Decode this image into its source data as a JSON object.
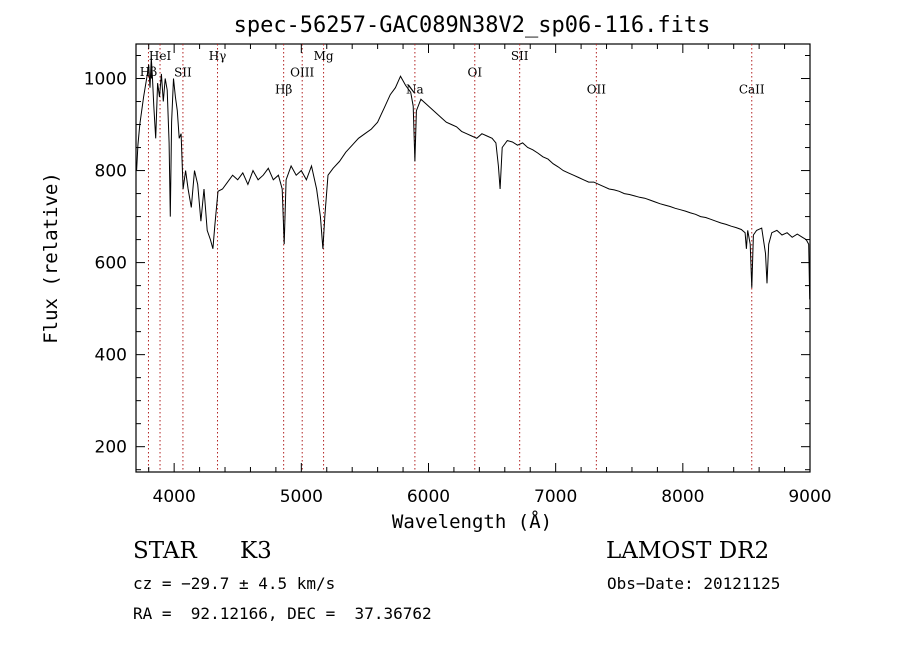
{
  "chart_data": {
    "type": "line",
    "title": "spec-56257-GAC089N38V2_sp06-116.fits",
    "xlabel": "Wavelength (Å)",
    "ylabel": "Flux (relative)",
    "xlim": [
      3700,
      9000
    ],
    "ylim": [
      145,
      1075
    ],
    "x_ticks": [
      4000,
      5000,
      6000,
      7000,
      8000,
      9000
    ],
    "y_ticks": [
      200,
      400,
      600,
      800,
      1000
    ],
    "grid": false,
    "line_color": "#000000",
    "marker_color": "#b22222",
    "lines": [
      {
        "label": "Hβ",
        "x": 3798,
        "label_y": 1005
      },
      {
        "label": "HeI",
        "x": 3889,
        "label_y": 1040
      },
      {
        "label": "SII",
        "x": 4069,
        "label_y": 1004
      },
      {
        "label": "Hγ",
        "x": 4341,
        "label_y": 1040
      },
      {
        "label": "Hβ",
        "x": 4861,
        "label_y": 967
      },
      {
        "label": "OIII",
        "x": 5007,
        "label_y": 1004
      },
      {
        "label": "Mg",
        "x": 5175,
        "label_y": 1040
      },
      {
        "label": "Na",
        "x": 5893,
        "label_y": 967
      },
      {
        "label": "OI",
        "x": 6364,
        "label_y": 1004
      },
      {
        "label": "SII",
        "x": 6717,
        "label_y": 1040
      },
      {
        "label": "OII",
        "x": 7320,
        "label_y": 967
      },
      {
        "label": "CaII",
        "x": 8542,
        "label_y": 967
      }
    ],
    "series_points": [
      [
        3705,
        800
      ],
      [
        3715,
        855
      ],
      [
        3730,
        900
      ],
      [
        3745,
        930
      ],
      [
        3760,
        960
      ],
      [
        3775,
        985
      ],
      [
        3790,
        1010
      ],
      [
        3800,
        1030
      ],
      [
        3810,
        980
      ],
      [
        3820,
        1045
      ],
      [
        3830,
        1000
      ],
      [
        3840,
        940
      ],
      [
        3855,
        870
      ],
      [
        3870,
        990
      ],
      [
        3885,
        960
      ],
      [
        3900,
        1010
      ],
      [
        3915,
        950
      ],
      [
        3930,
        1000
      ],
      [
        3945,
        975
      ],
      [
        3960,
        860
      ],
      [
        3970,
        700
      ],
      [
        3980,
        905
      ],
      [
        3995,
        1000
      ],
      [
        4010,
        960
      ],
      [
        4025,
        930
      ],
      [
        4040,
        870
      ],
      [
        4055,
        880
      ],
      [
        4070,
        760
      ],
      [
        4090,
        800
      ],
      [
        4110,
        760
      ],
      [
        4135,
        720
      ],
      [
        4160,
        800
      ],
      [
        4185,
        770
      ],
      [
        4210,
        690
      ],
      [
        4235,
        760
      ],
      [
        4260,
        670
      ],
      [
        4285,
        650
      ],
      [
        4305,
        630
      ],
      [
        4320,
        680
      ],
      [
        4345,
        755
      ],
      [
        4380,
        760
      ],
      [
        4420,
        775
      ],
      [
        4460,
        790
      ],
      [
        4500,
        780
      ],
      [
        4540,
        795
      ],
      [
        4580,
        770
      ],
      [
        4620,
        800
      ],
      [
        4660,
        780
      ],
      [
        4700,
        790
      ],
      [
        4740,
        805
      ],
      [
        4780,
        780
      ],
      [
        4820,
        790
      ],
      [
        4850,
        760
      ],
      [
        4865,
        640
      ],
      [
        4880,
        780
      ],
      [
        4920,
        810
      ],
      [
        4960,
        790
      ],
      [
        5000,
        800
      ],
      [
        5040,
        780
      ],
      [
        5080,
        810
      ],
      [
        5120,
        760
      ],
      [
        5150,
        700
      ],
      [
        5170,
        630
      ],
      [
        5185,
        700
      ],
      [
        5210,
        790
      ],
      [
        5250,
        805
      ],
      [
        5300,
        820
      ],
      [
        5350,
        840
      ],
      [
        5400,
        855
      ],
      [
        5450,
        870
      ],
      [
        5500,
        880
      ],
      [
        5550,
        890
      ],
      [
        5600,
        905
      ],
      [
        5650,
        935
      ],
      [
        5700,
        965
      ],
      [
        5740,
        980
      ],
      [
        5780,
        1005
      ],
      [
        5820,
        985
      ],
      [
        5860,
        970
      ],
      [
        5880,
        940
      ],
      [
        5893,
        820
      ],
      [
        5905,
        930
      ],
      [
        5940,
        955
      ],
      [
        5980,
        945
      ],
      [
        6020,
        935
      ],
      [
        6060,
        925
      ],
      [
        6100,
        915
      ],
      [
        6140,
        905
      ],
      [
        6180,
        900
      ],
      [
        6220,
        895
      ],
      [
        6260,
        885
      ],
      [
        6300,
        880
      ],
      [
        6340,
        875
      ],
      [
        6380,
        870
      ],
      [
        6420,
        880
      ],
      [
        6460,
        875
      ],
      [
        6500,
        870
      ],
      [
        6530,
        860
      ],
      [
        6550,
        810
      ],
      [
        6563,
        760
      ],
      [
        6580,
        850
      ],
      [
        6620,
        865
      ],
      [
        6660,
        862
      ],
      [
        6700,
        855
      ],
      [
        6740,
        860
      ],
      [
        6780,
        850
      ],
      [
        6820,
        845
      ],
      [
        6860,
        838
      ],
      [
        6900,
        830
      ],
      [
        6940,
        825
      ],
      [
        6980,
        815
      ],
      [
        7020,
        808
      ],
      [
        7060,
        800
      ],
      [
        7100,
        795
      ],
      [
        7140,
        790
      ],
      [
        7180,
        785
      ],
      [
        7220,
        780
      ],
      [
        7260,
        775
      ],
      [
        7300,
        775
      ],
      [
        7340,
        770
      ],
      [
        7380,
        765
      ],
      [
        7420,
        760
      ],
      [
        7460,
        758
      ],
      [
        7500,
        755
      ],
      [
        7540,
        750
      ],
      [
        7580,
        748
      ],
      [
        7620,
        745
      ],
      [
        7660,
        742
      ],
      [
        7700,
        740
      ],
      [
        7740,
        736
      ],
      [
        7780,
        732
      ],
      [
        7820,
        728
      ],
      [
        7860,
        725
      ],
      [
        7900,
        722
      ],
      [
        7940,
        718
      ],
      [
        7980,
        715
      ],
      [
        8020,
        712
      ],
      [
        8060,
        708
      ],
      [
        8100,
        705
      ],
      [
        8140,
        700
      ],
      [
        8180,
        698
      ],
      [
        8220,
        694
      ],
      [
        8260,
        690
      ],
      [
        8300,
        686
      ],
      [
        8340,
        683
      ],
      [
        8380,
        679
      ],
      [
        8420,
        676
      ],
      [
        8460,
        672
      ],
      [
        8490,
        665
      ],
      [
        8500,
        630
      ],
      [
        8510,
        670
      ],
      [
        8530,
        640
      ],
      [
        8542,
        545
      ],
      [
        8555,
        660
      ],
      [
        8580,
        670
      ],
      [
        8620,
        675
      ],
      [
        8650,
        620
      ],
      [
        8662,
        555
      ],
      [
        8675,
        640
      ],
      [
        8700,
        665
      ],
      [
        8740,
        670
      ],
      [
        8780,
        660
      ],
      [
        8820,
        665
      ],
      [
        8860,
        655
      ],
      [
        8900,
        662
      ],
      [
        8940,
        655
      ],
      [
        8970,
        650
      ],
      [
        8990,
        640
      ],
      [
        8998,
        520
      ]
    ]
  },
  "info": {
    "object_class": "STAR",
    "subclass": "K3",
    "survey": "LAMOST DR2",
    "cz": "cz = −29.7 ± 4.5 km/s",
    "obs_date": "Obs−Date: 20121125",
    "coords": "RA =  92.12166, DEC =  37.36762"
  }
}
